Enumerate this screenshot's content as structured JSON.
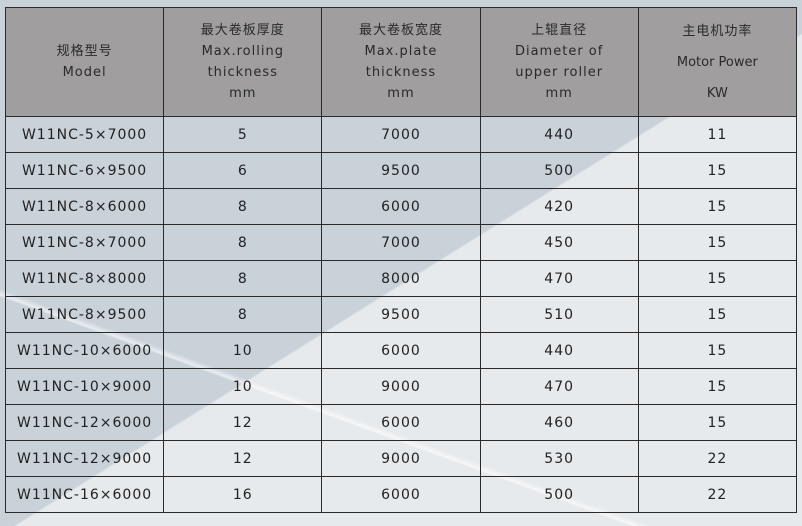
{
  "headers": [
    {
      "zh": "规格型号",
      "en": [
        "Model"
      ]
    },
    {
      "zh": "最大卷板厚度",
      "en": [
        "Max.rolling",
        "thickness",
        "mm"
      ]
    },
    {
      "zh": "最大卷板宽度",
      "en": [
        "Max.plate",
        "thickness",
        "mm"
      ]
    },
    {
      "zh": "上辊直径",
      "en": [
        "Diameter of",
        "upper roller",
        "mm"
      ]
    },
    {
      "zh": "主电机功率",
      "en": [
        "Motor Power",
        "KW"
      ]
    }
  ],
  "rows": [
    [
      "W11NC-5×7000",
      "5",
      "7000",
      "440",
      "11"
    ],
    [
      "W11NC-6×9500",
      "6",
      "9500",
      "500",
      "15"
    ],
    [
      "W11NC-8×6000",
      "8",
      "6000",
      "420",
      "15"
    ],
    [
      "W11NC-8×7000",
      "8",
      "7000",
      "450",
      "15"
    ],
    [
      "W11NC-8×8000",
      "8",
      "8000",
      "470",
      "15"
    ],
    [
      "W11NC-8×9500",
      "8",
      "9500",
      "510",
      "15"
    ],
    [
      "W11NC-10×6000",
      "10",
      "6000",
      "440",
      "15"
    ],
    [
      "W11NC-10×9000",
      "10",
      "9000",
      "470",
      "15"
    ],
    [
      "W11NC-12×6000",
      "12",
      "6000",
      "460",
      "15"
    ],
    [
      "W11NC-12×9000",
      "12",
      "9000",
      "530",
      "22"
    ],
    [
      "W11NC-16×6000",
      "16",
      "6000",
      "500",
      "22"
    ]
  ]
}
